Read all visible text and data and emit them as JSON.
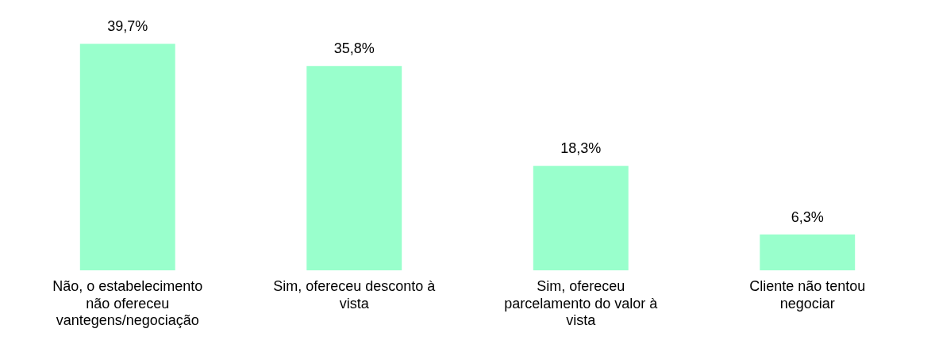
{
  "chart_data": {
    "type": "bar",
    "categories": [
      "Não, o estabelecimento não ofereceu vantegens/negociação",
      "Sim, ofereceu desconto à vista",
      "Sim, ofereceu parcelamento do valor à vista",
      "Cliente não tentou negociar"
    ],
    "values": [
      39.7,
      35.8,
      18.3,
      6.3
    ],
    "value_labels": [
      "39,7%",
      "35,8%",
      "18,3%",
      "6,3%"
    ],
    "color": "#99ffcc",
    "grid": false,
    "legend": false
  }
}
